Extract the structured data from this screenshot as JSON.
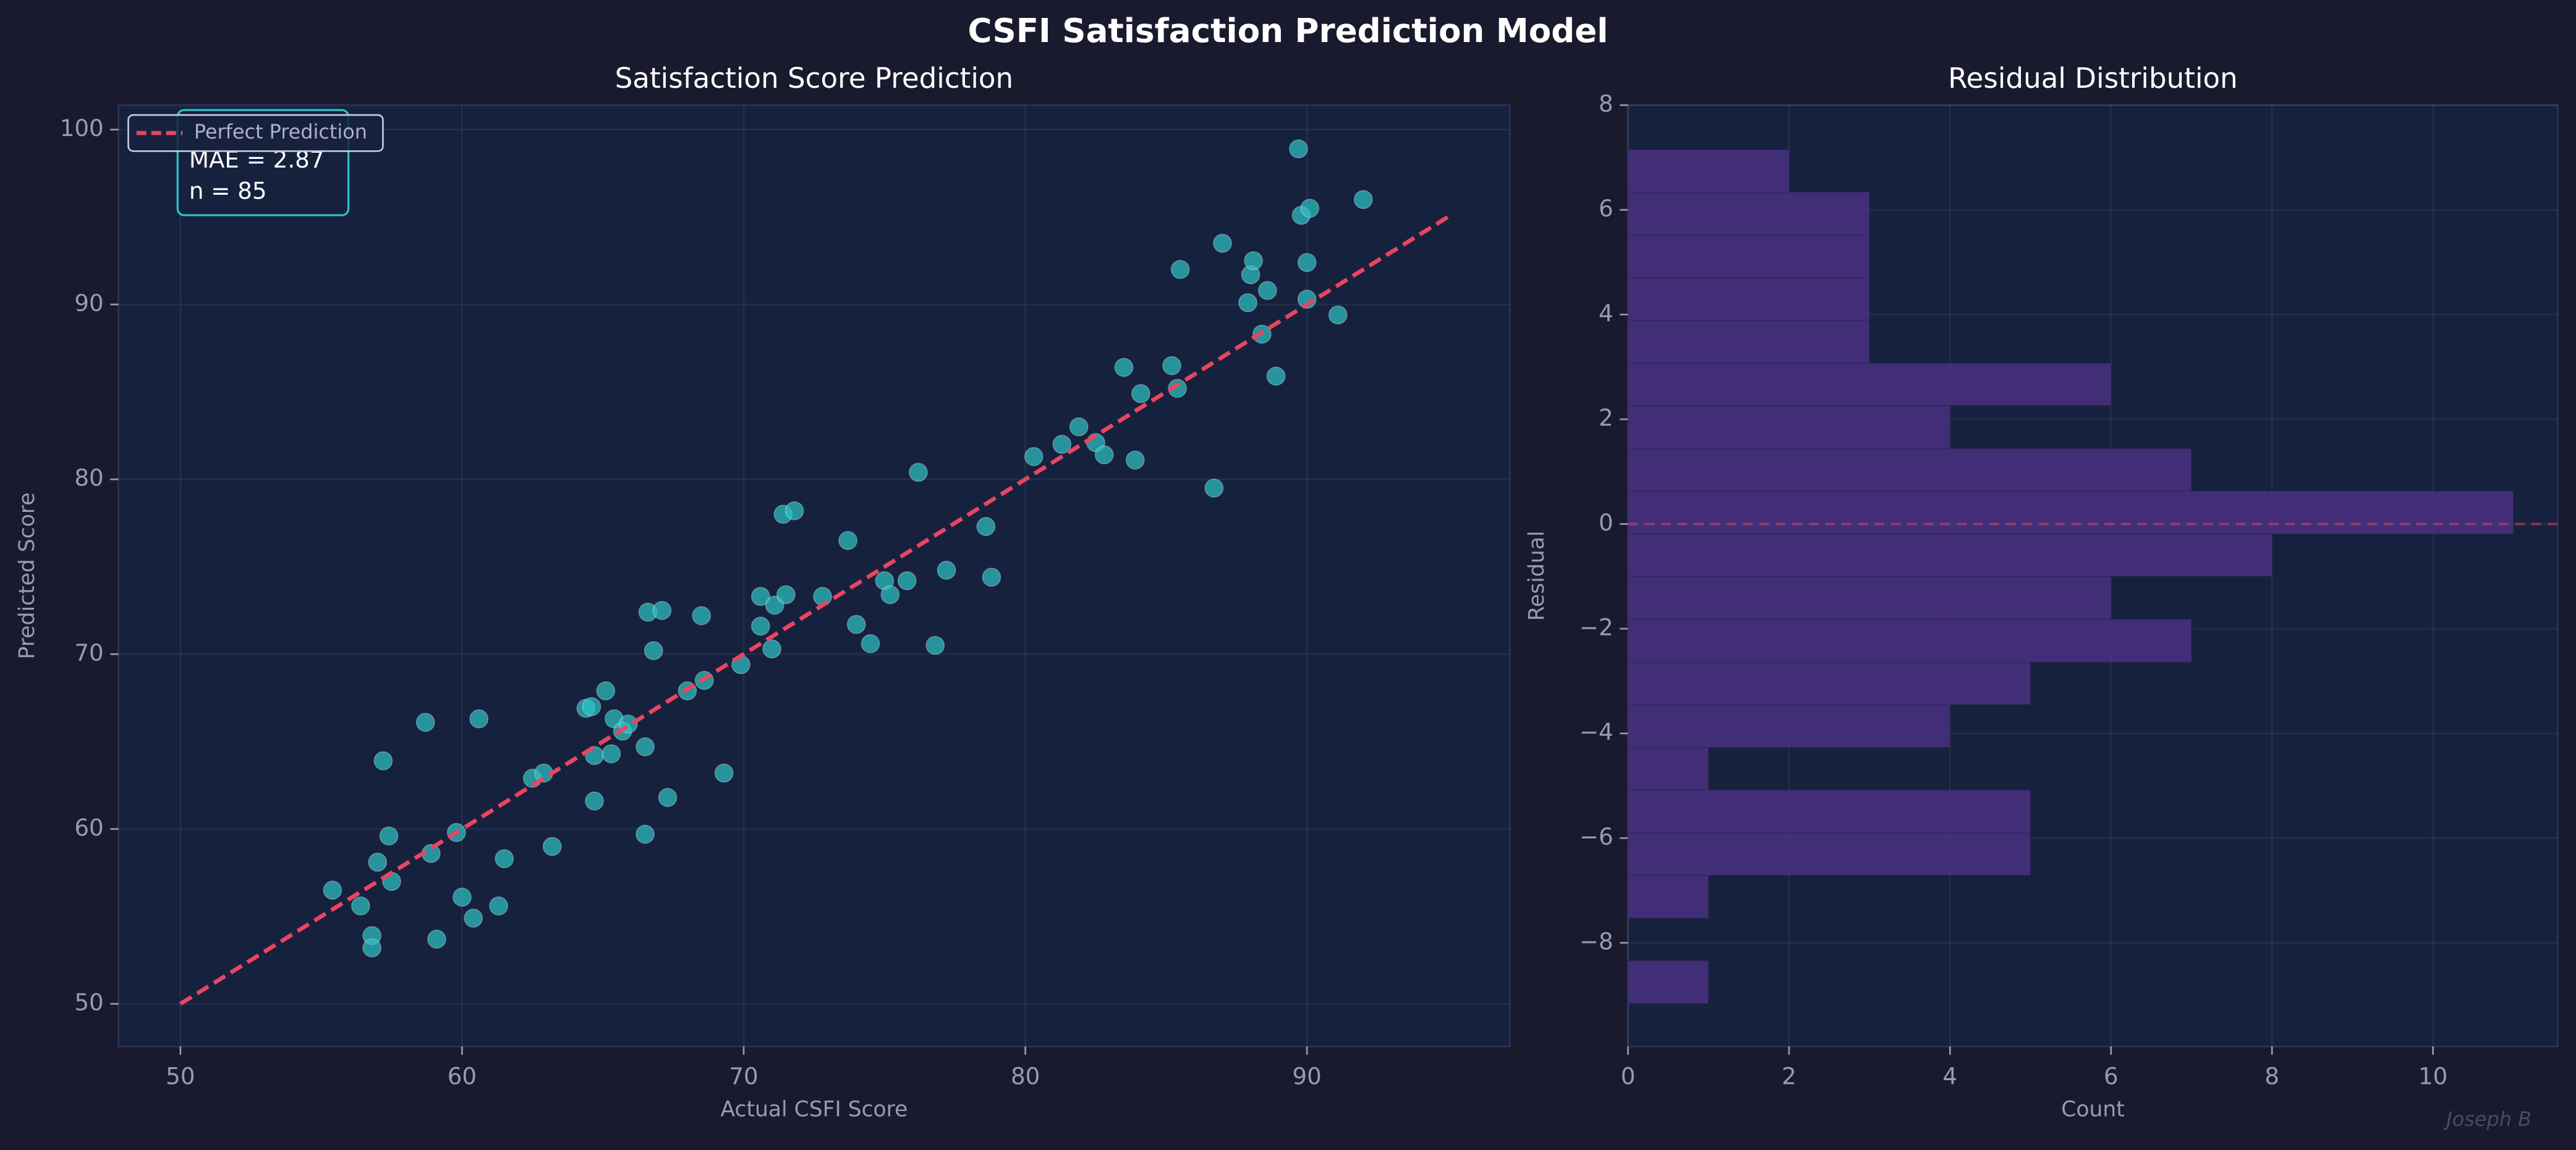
{
  "suptitle": "CSFI Satisfaction Prediction Model",
  "watermark": "Joseph B",
  "chart_data": [
    {
      "type": "scatter",
      "title": "Satisfaction Score Prediction",
      "xlabel": "Actual CSFI Score",
      "ylabel": "Predicted Score",
      "color": "#2ec4c6",
      "grid": true,
      "legend": "upper left",
      "xlim": [
        47.8,
        97.2
      ],
      "ylim": [
        47.56,
        101.4
      ],
      "xticks": [
        50,
        60,
        70,
        80,
        90
      ],
      "yticks": [
        50,
        60,
        70,
        80,
        90,
        100
      ],
      "x": [
        55.4,
        56.4,
        56.8,
        56.8,
        57.0,
        57.2,
        57.4,
        57.5,
        58.7,
        58.9,
        59.1,
        59.8,
        60.0,
        60.4,
        60.6,
        61.3,
        61.5,
        62.5,
        62.9,
        63.2,
        64.4,
        64.6,
        64.7,
        64.7,
        65.1,
        65.3,
        65.4,
        65.7,
        65.9,
        66.5,
        66.5,
        66.6,
        66.8,
        67.1,
        67.3,
        68.0,
        68.5,
        68.6,
        69.3,
        69.9,
        70.6,
        70.6,
        71.0,
        71.1,
        71.4,
        71.5,
        71.8,
        72.8,
        73.7,
        74.0,
        74.5,
        75.0,
        75.2,
        75.8,
        76.2,
        76.8,
        77.2,
        78.6,
        78.8,
        80.3,
        81.3,
        81.9,
        82.5,
        82.8,
        83.9,
        83.5,
        84.1,
        85.2,
        85.4,
        85.5,
        86.7,
        87.0,
        87.9,
        88.0,
        88.1,
        88.6,
        88.4,
        88.9,
        89.7,
        89.8,
        90.1,
        90.0,
        90.0,
        91.1,
        92.0
      ],
      "y": [
        56.5,
        55.6,
        53.9,
        53.2,
        58.1,
        63.9,
        59.6,
        57.0,
        66.1,
        58.6,
        53.7,
        59.8,
        56.1,
        54.9,
        66.3,
        55.6,
        58.3,
        62.9,
        63.2,
        59.0,
        66.9,
        67.0,
        64.2,
        61.6,
        67.9,
        64.3,
        66.3,
        65.6,
        66.0,
        59.7,
        64.7,
        72.4,
        70.2,
        72.5,
        61.8,
        67.9,
        72.2,
        68.5,
        63.2,
        69.4,
        73.3,
        71.6,
        70.3,
        72.8,
        78.0,
        73.4,
        78.2,
        73.3,
        76.5,
        71.7,
        70.6,
        74.2,
        73.4,
        74.2,
        80.4,
        70.5,
        74.8,
        77.3,
        74.4,
        81.3,
        82.0,
        83.0,
        82.1,
        81.4,
        81.1,
        86.4,
        84.9,
        86.5,
        85.2,
        92.0,
        79.5,
        93.5,
        90.1,
        91.7,
        92.5,
        90.8,
        88.3,
        85.9,
        98.9,
        95.1,
        95.5,
        90.3,
        92.4,
        89.4,
        96.0
      ],
      "lines": [
        {
          "name": "Perfect Prediction",
          "color": "#e94560",
          "x": [
            50,
            95
          ],
          "y": [
            50,
            95
          ]
        }
      ],
      "annotation": [
        "MAE = 2.87",
        "n = 85"
      ]
    },
    {
      "type": "histogram",
      "orientation": "horizontal",
      "title": "Residual Distribution",
      "xlabel": "Count",
      "ylabel": "Residual",
      "color": "#4a3080",
      "grid": true,
      "xlim": [
        0,
        11.55
      ],
      "ylim": [
        -9.98,
        8.0
      ],
      "xticks": [
        0,
        2,
        4,
        6,
        8,
        10
      ],
      "yticks": [
        {
          "value": -8,
          "label": "−8"
        },
        {
          "value": -6,
          "label": "−6"
        },
        {
          "value": -4,
          "label": "−4"
        },
        {
          "value": -2,
          "label": "−2"
        },
        0,
        2,
        4,
        6,
        8
      ],
      "bins": [
        -9.16,
        -8.34,
        -7.53,
        -6.71,
        -5.9,
        -5.08,
        -4.27,
        -3.45,
        -2.64,
        -1.82,
        -1.0,
        -0.19,
        0.63,
        1.44,
        2.26,
        3.07,
        3.89,
        4.7,
        5.52,
        6.34,
        7.15
      ],
      "counts": [
        1,
        0,
        1,
        5,
        5,
        1,
        4,
        5,
        7,
        6,
        8,
        11,
        7,
        4,
        6,
        3,
        3,
        3,
        3,
        2
      ],
      "hline": {
        "value": 0,
        "color": "#e94560"
      }
    }
  ]
}
